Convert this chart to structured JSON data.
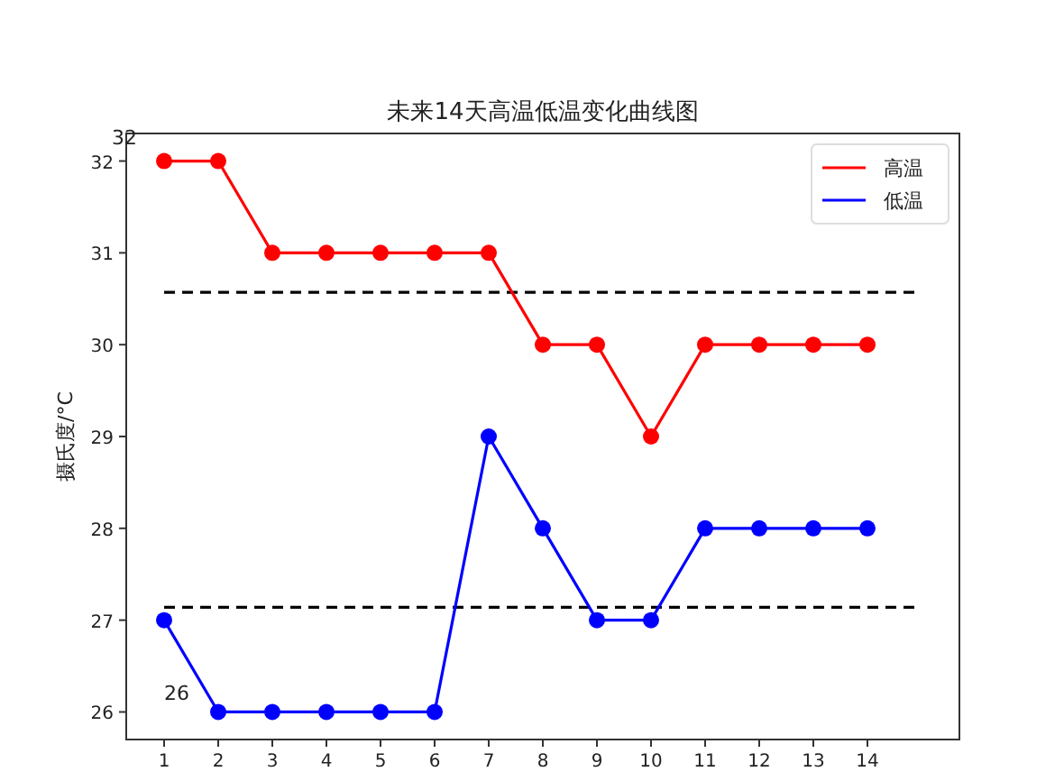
{
  "chart_data": {
    "type": "line",
    "title": "未来14天高温低温变化曲线图",
    "ylabel": "摄氏度/°C",
    "x": [
      1,
      2,
      3,
      4,
      5,
      6,
      7,
      8,
      9,
      10,
      11,
      12,
      13,
      14
    ],
    "series": [
      {
        "name": "高温",
        "color": "#ff0000",
        "values": [
          32,
          32,
          31,
          31,
          31,
          31,
          31,
          30,
          30,
          29,
          30,
          30,
          30,
          30
        ]
      },
      {
        "name": "低温",
        "color": "#0000ff",
        "values": [
          27,
          26,
          26,
          26,
          26,
          26,
          29,
          28,
          27,
          27,
          28,
          28,
          28,
          28
        ]
      }
    ],
    "xlim": [
      0.3,
      15.7
    ],
    "ylim": [
      25.7,
      32.3
    ],
    "xticks": [
      1,
      2,
      3,
      4,
      5,
      6,
      7,
      8,
      9,
      10,
      11,
      12,
      13,
      14
    ],
    "yticks": [
      26,
      27,
      28,
      29,
      30,
      31,
      32
    ],
    "ref_lines": [
      {
        "axis": "y",
        "value": 30.57,
        "color": "#000000",
        "line_style": "dashed"
      },
      {
        "axis": "y",
        "value": 27.14,
        "color": "#000000",
        "line_style": "dashed"
      }
    ],
    "annotations": [
      "32",
      "26"
    ],
    "marker": "circle",
    "line_style": "solid",
    "legend": "top right",
    "grid": false
  }
}
